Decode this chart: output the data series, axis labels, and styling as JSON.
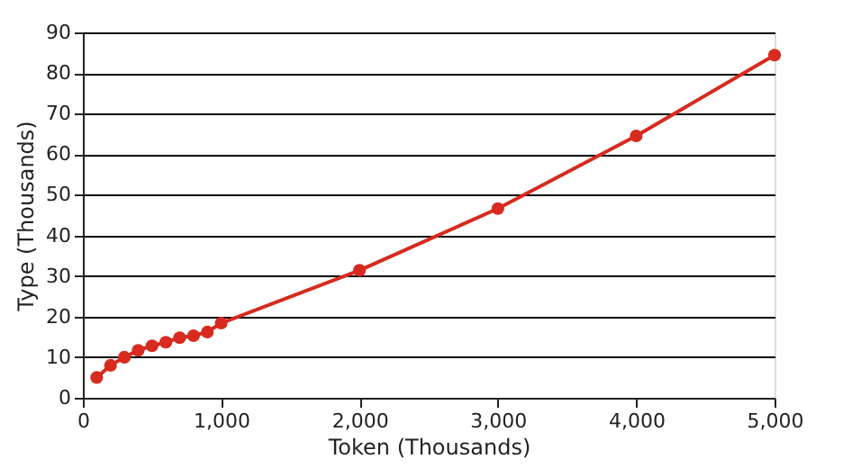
{
  "chart_data": {
    "type": "line",
    "xlabel": "Token (Thousands)",
    "ylabel": "Type (Thousands)",
    "x": [
      100,
      200,
      300,
      400,
      500,
      600,
      700,
      800,
      900,
      1000,
      2000,
      3000,
      4000,
      5000
    ],
    "series": [
      {
        "color": "#d62b1e",
        "values": [
          5,
          8,
          10,
          11.7,
          12.8,
          13.7,
          14.8,
          15.3,
          16.2,
          18.4,
          31.4,
          46.6,
          64.5,
          84.4
        ]
      }
    ],
    "xlim": [
      0,
      5000
    ],
    "xticks": [
      {
        "value": 0,
        "label": "0"
      },
      {
        "value": 1000,
        "label": "1,000"
      },
      {
        "value": 2000,
        "label": "2,000"
      },
      {
        "value": 3000,
        "label": "3,000"
      },
      {
        "value": 4000,
        "label": "4,000"
      },
      {
        "value": 5000,
        "label": "5,000"
      }
    ],
    "ylim": [
      0,
      90
    ],
    "yticks": [
      0,
      10,
      20,
      30,
      40,
      50,
      60,
      70,
      80,
      90
    ],
    "grid": "y",
    "marker": "circle",
    "line_style": "solid"
  }
}
